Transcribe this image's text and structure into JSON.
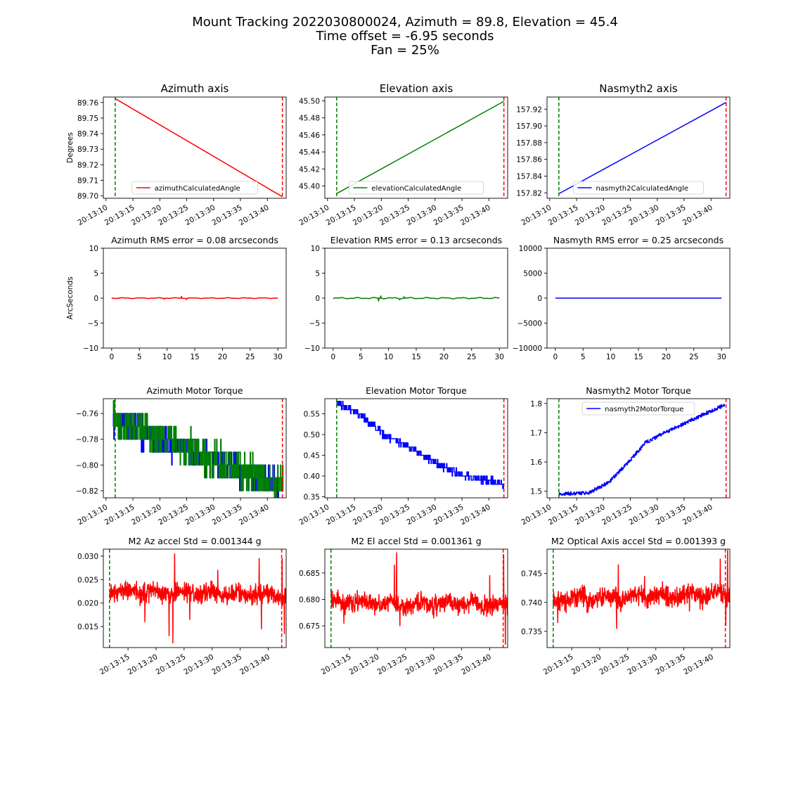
{
  "figure": {
    "title_lines": [
      "Mount Tracking 2022030800024, Azimuth = 89.8, Elevation = 45.4",
      "Time offset = -6.95 seconds",
      "Fan = 25%"
    ]
  },
  "chart_data": [
    {
      "id": "az-angle",
      "type": "line",
      "title": "Azimuth axis",
      "ylabel": "Degrees",
      "xlabel": "",
      "xlim": [
        9.5,
        43.5
      ],
      "ylim": [
        89.6985,
        89.7635
      ],
      "xticks": [
        10,
        15,
        20,
        25,
        30,
        35,
        40
      ],
      "xtick_labels": [
        "20:13:10",
        "20:13:15",
        "20:13:20",
        "20:13:25",
        "20:13:30",
        "20:13:35",
        "20:13:40"
      ],
      "yticks": [
        89.7,
        89.71,
        89.72,
        89.73,
        89.74,
        89.75,
        89.76
      ],
      "ytick_labels": [
        "89.70",
        "89.71",
        "89.72",
        "89.73",
        "89.74",
        "89.75",
        "89.76"
      ],
      "legend": "bottom-center",
      "series": [
        {
          "name": "azimuthCalculatedAngle",
          "color": "#ff0000",
          "style": "linear",
          "x": [
            11.7,
            42.8
          ],
          "y": [
            89.7625,
            89.6995
          ]
        }
      ],
      "vlines": [
        {
          "x": 11.7,
          "color": "#008000"
        },
        {
          "x": 42.8,
          "color": "#ff0000"
        }
      ]
    },
    {
      "id": "el-angle",
      "type": "line",
      "title": "Elevation axis",
      "ylabel": "",
      "xlabel": "",
      "xlim": [
        9.5,
        43.5
      ],
      "ylim": [
        45.3855,
        45.5045
      ],
      "xticks": [
        10,
        15,
        20,
        25,
        30,
        35,
        40
      ],
      "xtick_labels": [
        "20:13:10",
        "20:13:15",
        "20:13:20",
        "20:13:25",
        "20:13:30",
        "20:13:35",
        "20:13:40"
      ],
      "yticks": [
        45.4,
        45.42,
        45.44,
        45.46,
        45.48,
        45.5
      ],
      "ytick_labels": [
        "45.40",
        "45.42",
        "45.44",
        "45.46",
        "45.48",
        "45.50"
      ],
      "legend": "bottom-center",
      "series": [
        {
          "name": "elevationCalculatedAngle",
          "color": "#008000",
          "style": "linear",
          "x": [
            11.7,
            42.8
          ],
          "y": [
            45.391,
            45.4995
          ]
        }
      ],
      "vlines": [
        {
          "x": 11.7,
          "color": "#008000"
        },
        {
          "x": 42.8,
          "color": "#ff0000"
        }
      ]
    },
    {
      "id": "na-angle",
      "type": "line",
      "title": "Nasmyth2 axis",
      "ylabel": "",
      "xlabel": "",
      "xlim": [
        9.5,
        43.5
      ],
      "ylim": [
        157.8135,
        157.9345
      ],
      "xticks": [
        10,
        15,
        20,
        25,
        30,
        35,
        40
      ],
      "xtick_labels": [
        "20:13:10",
        "20:13:15",
        "20:13:20",
        "20:13:25",
        "20:13:30",
        "20:13:35",
        "20:13:40"
      ],
      "yticks": [
        157.82,
        157.84,
        157.86,
        157.88,
        157.9,
        157.92
      ],
      "ytick_labels": [
        "157.82",
        "157.84",
        "157.86",
        "157.88",
        "157.90",
        "157.92"
      ],
      "legend": "bottom-center",
      "series": [
        {
          "name": "nasmyth2CalculatedAngle",
          "color": "#0000ff",
          "style": "linear",
          "x": [
            11.7,
            42.8
          ],
          "y": [
            157.819,
            157.928
          ]
        }
      ],
      "vlines": [
        {
          "x": 11.7,
          "color": "#008000"
        },
        {
          "x": 42.8,
          "color": "#ff0000"
        }
      ]
    },
    {
      "id": "az-rms",
      "type": "line",
      "title": "Azimuth RMS error = 0.08 arcseconds",
      "ylabel": "ArcSeconds",
      "xlabel": "",
      "xlim": [
        -1.5,
        31.5
      ],
      "ylim": [
        -10,
        10
      ],
      "xticks": [
        0,
        5,
        10,
        15,
        20,
        25,
        30
      ],
      "xtick_labels": [
        "0",
        "5",
        "10",
        "15",
        "20",
        "25",
        "30"
      ],
      "yticks": [
        -10,
        -5,
        0,
        5,
        10
      ],
      "ytick_labels": [
        "−10",
        "−5",
        "0",
        "5",
        "10"
      ],
      "legend": "none",
      "series": [
        {
          "color": "#ff0000",
          "style": "wiggle",
          "x": [
            0,
            30
          ],
          "y": [
            0,
            0
          ],
          "amp": 0.08,
          "spikes": [
            [
              12.6,
              0.35
            ],
            [
              13.5,
              -0.3
            ],
            [
              9.5,
              -0.2
            ]
          ],
          "seed": 3
        }
      ],
      "vlines": []
    },
    {
      "id": "el-rms",
      "type": "line",
      "title": "Elevation RMS error = 0.13 arcseconds",
      "ylabel": "",
      "xlabel": "",
      "xlim": [
        -1.5,
        31.5
      ],
      "ylim": [
        -10,
        10
      ],
      "xticks": [
        0,
        5,
        10,
        15,
        20,
        25,
        30
      ],
      "xtick_labels": [
        "0",
        "5",
        "10",
        "15",
        "20",
        "25",
        "30"
      ],
      "yticks": [
        -10,
        -5,
        0,
        5,
        10
      ],
      "ytick_labels": [
        "−10",
        "−5",
        "0",
        "5",
        "10"
      ],
      "legend": "none",
      "series": [
        {
          "color": "#008000",
          "style": "wiggle",
          "x": [
            0,
            30
          ],
          "y": [
            0,
            0
          ],
          "amp": 0.13,
          "spikes": [
            [
              8.2,
              -0.6
            ],
            [
              8.6,
              0.45
            ],
            [
              12.0,
              -0.35
            ],
            [
              12.8,
              0.3
            ]
          ],
          "seed": 7
        }
      ],
      "vlines": []
    },
    {
      "id": "na-rms",
      "type": "line",
      "title": "Nasmyth RMS error = 0.25 arcseconds",
      "ylabel": "",
      "xlabel": "",
      "xlim": [
        -1.5,
        31.5
      ],
      "ylim": [
        -10000,
        10000
      ],
      "xticks": [
        0,
        5,
        10,
        15,
        20,
        25,
        30
      ],
      "xtick_labels": [
        "0",
        "5",
        "10",
        "15",
        "20",
        "25",
        "30"
      ],
      "yticks": [
        -10000,
        -5000,
        0,
        5000,
        10000
      ],
      "ytick_labels": [
        "−10000",
        "−5000",
        "0",
        "5000",
        "10000"
      ],
      "legend": "none",
      "series": [
        {
          "color": "#0000ff",
          "style": "linear",
          "x": [
            0,
            30
          ],
          "y": [
            0,
            0
          ]
        }
      ],
      "vlines": []
    },
    {
      "id": "az-torque",
      "type": "line",
      "title": "Azimuth Motor Torque",
      "ylabel": "",
      "xlabel": "",
      "xlim": [
        9.5,
        43.5
      ],
      "ylim": [
        -0.8255,
        -0.7485
      ],
      "xticks": [
        10,
        15,
        20,
        25,
        30,
        35,
        40
      ],
      "xtick_labels": [
        "20:13:10",
        "20:13:15",
        "20:13:20",
        "20:13:25",
        "20:13:30",
        "20:13:35",
        "20:13:40"
      ],
      "yticks": [
        -0.82,
        -0.8,
        -0.78,
        -0.76
      ],
      "ytick_labels": [
        "−0.82",
        "−0.80",
        "−0.78",
        "−0.76"
      ],
      "legend": "none",
      "series": [
        {
          "color": "#0000ff",
          "style": "steps",
          "x": [
            11.3,
            42.9
          ],
          "y": [
            -0.766,
            -0.818
          ],
          "quant": 0.01,
          "jitter": 0.012,
          "seed": 11
        },
        {
          "color": "#008000",
          "style": "steps",
          "x": [
            11.3,
            42.9
          ],
          "y": [
            -0.765,
            -0.816
          ],
          "quant": 0.01,
          "jitter": 0.014,
          "seed": 19
        }
      ],
      "vlines": [
        {
          "x": 11.7,
          "color": "#008000"
        },
        {
          "x": 42.8,
          "color": "#ff0000"
        }
      ]
    },
    {
      "id": "el-torque",
      "type": "line",
      "title": "Elevation Motor Torque",
      "ylabel": "",
      "xlabel": "",
      "xlim": [
        9.5,
        43.5
      ],
      "ylim": [
        0.3475,
        0.5865
      ],
      "xticks": [
        10,
        15,
        20,
        25,
        30,
        35,
        40
      ],
      "xtick_labels": [
        "20:13:10",
        "20:13:15",
        "20:13:20",
        "20:13:25",
        "20:13:30",
        "20:13:35",
        "20:13:40"
      ],
      "yticks": [
        0.35,
        0.4,
        0.45,
        0.5,
        0.55
      ],
      "ytick_labels": [
        "0.35",
        "0.40",
        "0.45",
        "0.50",
        "0.55"
      ],
      "legend": "none",
      "series": [
        {
          "color": "#0000ff",
          "style": "curve",
          "x": [
            11.7,
            42.8
          ],
          "y": [
            0.577,
            0.38
          ],
          "curve": [
            [
              0,
              0.577
            ],
            [
              0.15,
              0.545
            ],
            [
              0.3,
              0.495
            ],
            [
              0.45,
              0.465
            ],
            [
              0.6,
              0.43
            ],
            [
              0.75,
              0.4
            ],
            [
              0.9,
              0.39
            ],
            [
              1.0,
              0.38
            ]
          ],
          "quant": 0.01,
          "jitter": 0.009,
          "seed": 23
        }
      ],
      "vlines": [
        {
          "x": 11.7,
          "color": "#008000"
        },
        {
          "x": 42.8,
          "color": "#ff0000"
        }
      ]
    },
    {
      "id": "na-torque",
      "type": "line",
      "title": "Nasmyth2 Motor Torque",
      "ylabel": "",
      "xlabel": "",
      "xlim": [
        9.5,
        43.5
      ],
      "ylim": [
        1.4775,
        1.8165
      ],
      "xticks": [
        10,
        15,
        20,
        25,
        30,
        35,
        40
      ],
      "xtick_labels": [
        "20:13:10",
        "20:13:15",
        "20:13:20",
        "20:13:25",
        "20:13:30",
        "20:13:35",
        "20:13:40"
      ],
      "yticks": [
        1.5,
        1.6,
        1.7,
        1.8
      ],
      "ytick_labels": [
        "1.5",
        "1.6",
        "1.7",
        "1.8"
      ],
      "legend": "top-center",
      "series": [
        {
          "name": "nasmyth2MotorTorque",
          "color": "#0000ff",
          "style": "curve",
          "x": [
            11.7,
            42.5
          ],
          "y": [
            1.49,
            1.795
          ],
          "curve": [
            [
              0,
              1.49
            ],
            [
              0.18,
              1.495
            ],
            [
              0.3,
              1.53
            ],
            [
              0.42,
              1.6
            ],
            [
              0.52,
              1.665
            ],
            [
              0.62,
              1.695
            ],
            [
              0.75,
              1.73
            ],
            [
              0.88,
              1.765
            ],
            [
              1.0,
              1.795
            ]
          ],
          "quant": 0,
          "jitter": 0.006,
          "seed": 29
        }
      ],
      "vlines": [
        {
          "x": 11.7,
          "color": "#008000"
        },
        {
          "x": 42.8,
          "color": "#ff0000"
        }
      ]
    },
    {
      "id": "m2-az",
      "type": "line",
      "title": "M2 Az accel Std = 0.001344 g",
      "ylabel": "",
      "xlabel": "",
      "xlim": [
        10.6,
        43.2
      ],
      "ylim": [
        0.0105,
        0.0315
      ],
      "xticks": [
        15,
        20,
        25,
        30,
        35,
        40
      ],
      "xtick_labels": [
        "20:13:15",
        "20:13:20",
        "20:13:25",
        "20:13:30",
        "20:13:35",
        "20:13:40"
      ],
      "yticks": [
        0.015,
        0.02,
        0.025,
        0.03
      ],
      "ytick_labels": [
        "0.015",
        "0.020",
        "0.025",
        "0.030"
      ],
      "legend": "none",
      "series": [
        {
          "color": "#ff0000",
          "style": "noise",
          "x": [
            11.7,
            43.2
          ],
          "y": [
            0.0225,
            0.0218
          ],
          "amp": 0.0016,
          "spikes": [
            [
              23.3,
              0.0305
            ],
            [
              23.0,
              0.0115
            ],
            [
              22.3,
              0.013
            ],
            [
              18.0,
              0.016
            ],
            [
              38.4,
              0.0295
            ],
            [
              38.8,
              0.0145
            ],
            [
              42.5,
              0.0295
            ],
            [
              42.9,
              0.0135
            ],
            [
              26.0,
              0.0165
            ],
            [
              31.0,
              0.027
            ]
          ],
          "seed": 31
        }
      ],
      "vlines": [
        {
          "x": 11.7,
          "color": "#008000"
        },
        {
          "x": 42.4,
          "color": "#ff0000"
        }
      ]
    },
    {
      "id": "m2-el",
      "type": "line",
      "title": "M2 El accel Std = 0.001361 g",
      "ylabel": "",
      "xlabel": "",
      "xlim": [
        10.6,
        43.2
      ],
      "ylim": [
        0.6709,
        0.6895
      ],
      "xticks": [
        15,
        20,
        25,
        30,
        35,
        40
      ],
      "xtick_labels": [
        "20:13:15",
        "20:13:20",
        "20:13:25",
        "20:13:30",
        "20:13:35",
        "20:13:40"
      ],
      "yticks": [
        0.675,
        0.68,
        0.685
      ],
      "ytick_labels": [
        "0.675",
        "0.680",
        "0.685"
      ],
      "legend": "none",
      "series": [
        {
          "color": "#ff0000",
          "style": "noise",
          "x": [
            11.7,
            43.2
          ],
          "y": [
            0.6795,
            0.679
          ],
          "amp": 0.0015,
          "spikes": [
            [
              23.4,
              0.6888
            ],
            [
              23.0,
              0.6865
            ],
            [
              24.0,
              0.675
            ],
            [
              14.0,
              0.6755
            ],
            [
              42.8,
              0.6715
            ],
            [
              42.5,
              0.6885
            ],
            [
              40.0,
              0.6845
            ],
            [
              30.0,
              0.6765
            ]
          ],
          "seed": 37
        }
      ],
      "vlines": [
        {
          "x": 11.7,
          "color": "#008000"
        },
        {
          "x": 42.4,
          "color": "#ff0000"
        }
      ]
    },
    {
      "id": "m2-oa",
      "type": "line",
      "title": "M2 Optical Axis accel Std = 0.001393 g",
      "ylabel": "",
      "xlabel": "",
      "xlim": [
        10.6,
        43.2
      ],
      "ylim": [
        0.7322,
        0.7492
      ],
      "xticks": [
        15,
        20,
        25,
        30,
        35,
        40
      ],
      "xtick_labels": [
        "20:13:15",
        "20:13:20",
        "20:13:25",
        "20:13:30",
        "20:13:35",
        "20:13:40"
      ],
      "yticks": [
        0.735,
        0.74,
        0.745
      ],
      "ytick_labels": [
        "0.735",
        "0.740",
        "0.745"
      ],
      "legend": "none",
      "series": [
        {
          "color": "#ff0000",
          "style": "noise",
          "x": [
            11.7,
            43.2
          ],
          "y": [
            0.7405,
            0.7415
          ],
          "amp": 0.0014,
          "spikes": [
            [
              23.0,
              0.7355
            ],
            [
              23.3,
              0.7465
            ],
            [
              12.5,
              0.7365
            ],
            [
              36.0,
              0.7385
            ],
            [
              41.5,
              0.7475
            ],
            [
              42.8,
              0.749
            ],
            [
              42.5,
              0.736
            ],
            [
              28.0,
              0.7445
            ]
          ],
          "seed": 41
        }
      ],
      "vlines": [
        {
          "x": 11.7,
          "color": "#008000"
        },
        {
          "x": 42.4,
          "color": "#ff0000"
        }
      ]
    }
  ]
}
